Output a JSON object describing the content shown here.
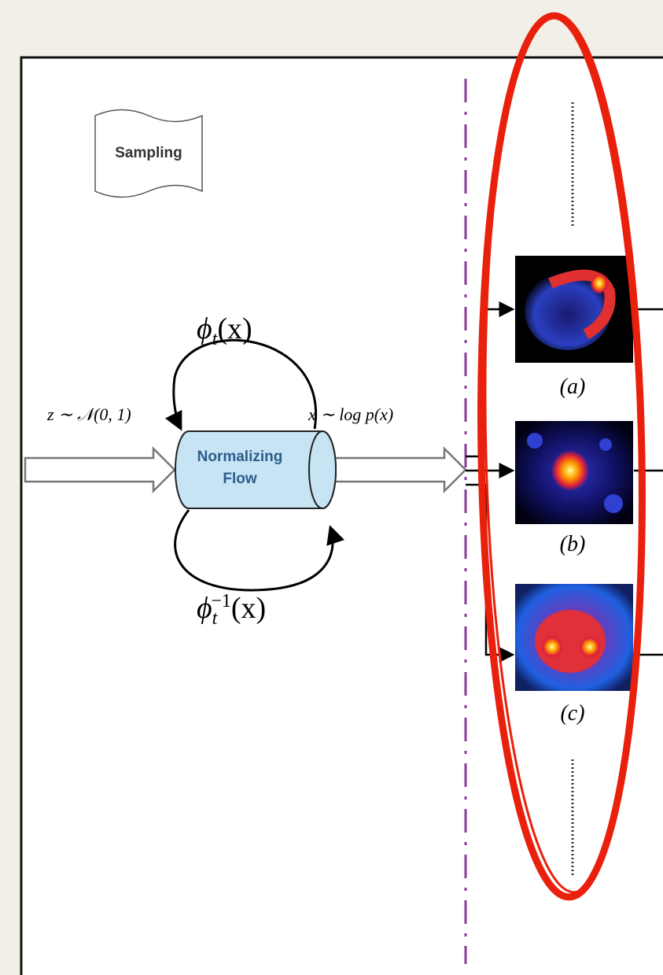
{
  "sampling": "Sampling",
  "forward": {
    "base": "ϕ",
    "sub": "t",
    "arg": "(x)"
  },
  "inverse": {
    "base": "ϕ",
    "sub": "t",
    "sup": "−1",
    "arg": "(x)"
  },
  "input_dist": "z ∼ 𝒩(0, 1)",
  "output_dist": "x ∼ log p(x)",
  "flow": [
    "Normalizing",
    "Flow"
  ],
  "samples": [
    "(a)",
    "(b)",
    "(c)"
  ]
}
